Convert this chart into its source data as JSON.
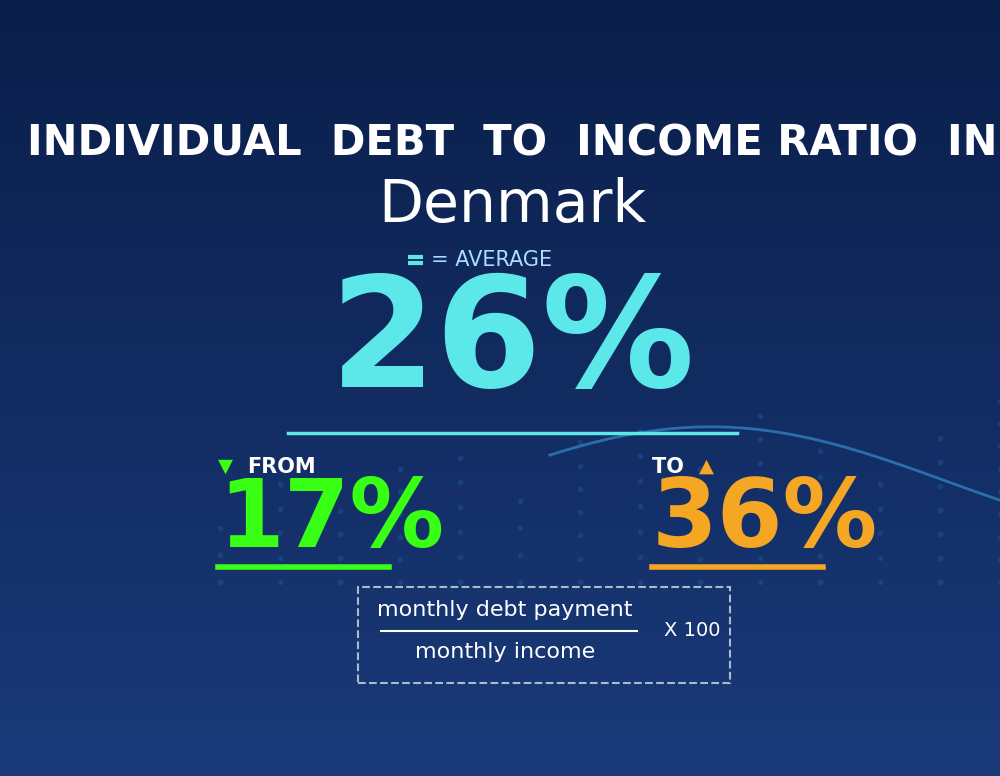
{
  "title_line1": "INDIVIDUAL  DEBT  TO  INCOME RATIO  IN",
  "title_line2": "Denmark",
  "avg_label": "= AVERAGE",
  "avg_value": "26%",
  "from_label": "FROM",
  "from_value": "17%",
  "to_label": "TO",
  "to_value": "36%",
  "formula_numerator": "monthly debt payment",
  "formula_denominator": "monthly income",
  "formula_multiplier": "X 100",
  "bg_color_top": "#0d1f4e",
  "bg_color_bottom": "#0a2a5e",
  "avg_color": "#5ce8e8",
  "from_color": "#39ff14",
  "to_color": "#f5a623",
  "title_color": "#ffffff",
  "denmark_color": "#ffffff",
  "label_color": "#ffffff",
  "avg_label_color": "#aaddff",
  "formula_color": "#ffffff",
  "arrow_down_color": "#39ff14",
  "arrow_up_color": "#f5a623"
}
